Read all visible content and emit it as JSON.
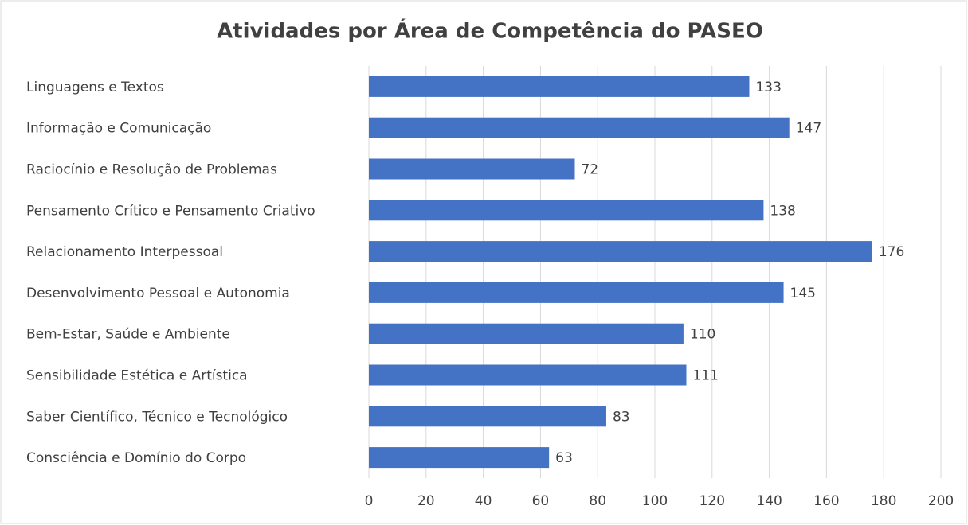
{
  "chart_data": {
    "type": "bar",
    "orientation": "horizontal",
    "title": "Atividades por Área de Competência do PASEO",
    "categories": [
      "Linguagens e Textos",
      "Informação e Comunicação",
      "Raciocínio e Resolução de Problemas",
      "Pensamento Crítico e Pensamento Criativo",
      "Relacionamento Interpessoal",
      "Desenvolvimento Pessoal e Autonomia",
      "Bem-Estar, Saúde e Ambiente",
      "Sensibilidade Estética e Artística",
      "Saber Científico, Técnico e Tecnológico",
      "Consciência e Domínio do Corpo"
    ],
    "values": [
      133,
      147,
      72,
      138,
      176,
      145,
      110,
      111,
      83,
      63
    ],
    "color": "#4472c4",
    "xlim": [
      0,
      200
    ],
    "xticks": [
      0,
      20,
      40,
      60,
      80,
      100,
      120,
      140,
      160,
      180,
      200
    ],
    "grid": true
  }
}
